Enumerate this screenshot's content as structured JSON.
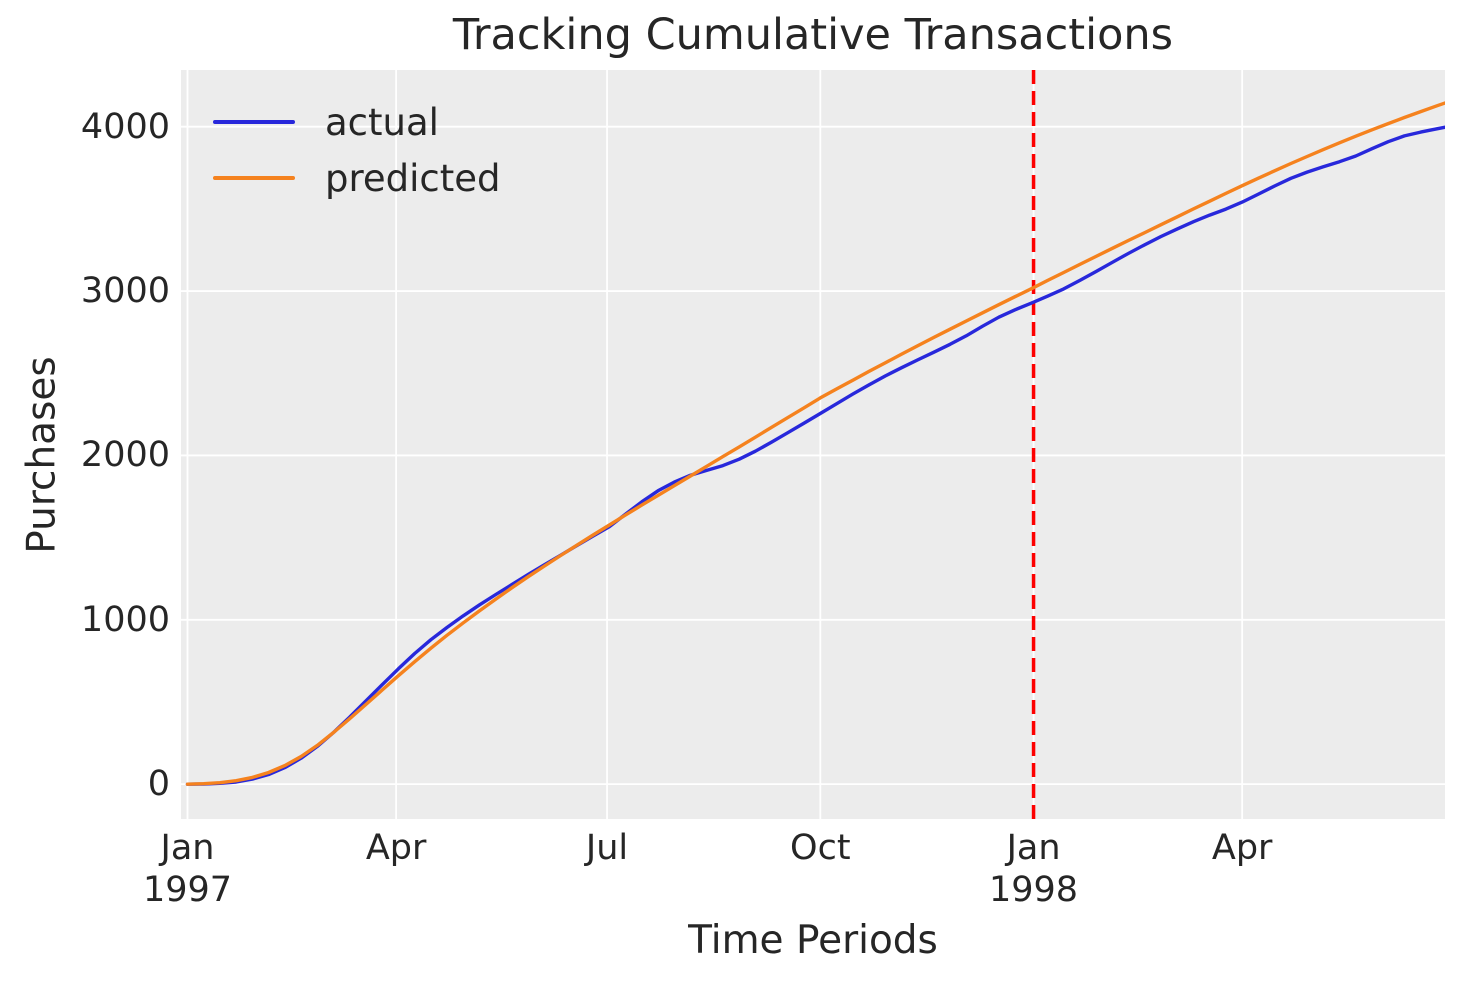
{
  "title": "Tracking Cumulative Transactions",
  "legend": {
    "actual_label": "actual",
    "predicted_label": "predicted"
  },
  "colors": {
    "actual": "#2828db",
    "predicted": "#f5821e",
    "calibration_line": "#fd0000",
    "plot_background": "#ececec",
    "grid": "#ffffff",
    "text": "#262626"
  },
  "chart_data": {
    "type": "line",
    "title": "Tracking Cumulative Transactions",
    "xlabel": "Time Periods",
    "ylabel": "Purchases",
    "x_unit": "weeks since 1997-01-01 (weekly cumulative transactions)",
    "grid": true,
    "legend_position": "upper left",
    "xlim_weeks": [
      -0.4,
      77.5
    ],
    "ylim": [
      -212,
      4345
    ],
    "yticks": [
      {
        "value": 0,
        "label": "0"
      },
      {
        "value": 1000,
        "label": "1000"
      },
      {
        "value": 2000,
        "label": "2000"
      },
      {
        "value": 3000,
        "label": "3000"
      },
      {
        "value": 4000,
        "label": "4000"
      }
    ],
    "xticks": [
      {
        "week": 0,
        "label": "Jan",
        "sublabel": "1997"
      },
      {
        "week": 12.857,
        "label": "Apr",
        "sublabel": ""
      },
      {
        "week": 25.857,
        "label": "Jul",
        "sublabel": ""
      },
      {
        "week": 39,
        "label": "Oct",
        "sublabel": ""
      },
      {
        "week": 52.143,
        "label": "Jan",
        "sublabel": "1998"
      },
      {
        "week": 65,
        "label": "Apr",
        "sublabel": ""
      }
    ],
    "vline": {
      "week": 52.143,
      "style": "dashed",
      "color": "#fd0000",
      "meaning": "end of calibration period (Jan 1998)"
    },
    "x_weeks_start": 0,
    "x_weeks_step": 1,
    "series": [
      {
        "name": "actual",
        "color": "#2828db",
        "values": [
          0,
          1,
          5,
          13,
          31,
          59,
          101,
          158,
          230,
          314,
          408,
          507,
          605,
          702,
          795,
          879,
          954,
          1024,
          1091,
          1154,
          1215,
          1276,
          1335,
          1393,
          1452,
          1510,
          1567,
          1643,
          1718,
          1785,
          1838,
          1880,
          1909,
          1938,
          1977,
          2026,
          2081,
          2138,
          2197,
          2255,
          2314,
          2373,
          2429,
          2483,
          2533,
          2581,
          2628,
          2676,
          2728,
          2786,
          2841,
          2886,
          2926,
          2969,
          3013,
          3065,
          3119,
          3175,
          3230,
          3282,
          3332,
          3378,
          3422,
          3462,
          3499,
          3541,
          3590,
          3639,
          3686,
          3724,
          3756,
          3787,
          3822,
          3866,
          3909,
          3944,
          3967,
          3987,
          4006
        ]
      },
      {
        "name": "predicted",
        "color": "#f5821e",
        "values": [
          0,
          3,
          9,
          21,
          41,
          71,
          113,
          168,
          236,
          314,
          398,
          485,
          573,
          660,
          745,
          827,
          906,
          982,
          1055,
          1126,
          1195,
          1262,
          1327,
          1391,
          1454,
          1516,
          1577,
          1638,
          1698,
          1757,
          1816,
          1875,
          1934,
          1993,
          2052,
          2111,
          2171,
          2230,
          2290,
          2350,
          2404,
          2458,
          2511,
          2563,
          2615,
          2667,
          2718,
          2768,
          2818,
          2868,
          2917,
          2966,
          3014,
          3064,
          3113,
          3162,
          3211,
          3260,
          3308,
          3356,
          3404,
          3452,
          3500,
          3547,
          3594,
          3641,
          3687,
          3732,
          3776,
          3819,
          3861,
          3902,
          3942,
          3981,
          4019,
          4056,
          4092,
          4127,
          4161
        ]
      }
    ]
  }
}
